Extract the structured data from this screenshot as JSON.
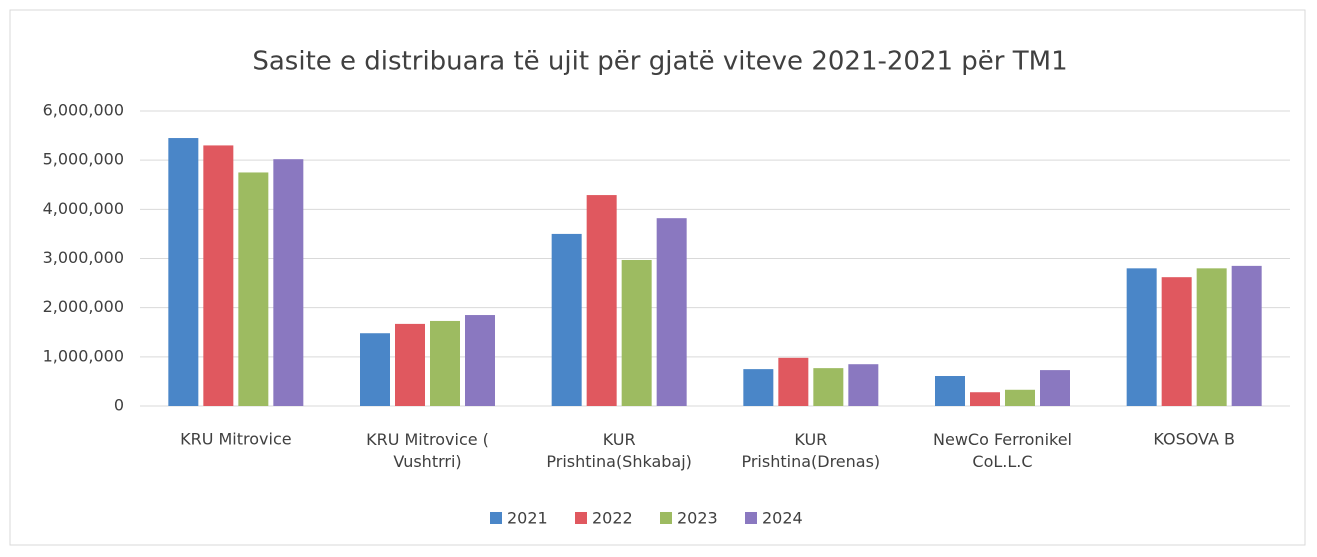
{
  "chart_data": {
    "type": "bar",
    "title": "Sasite e distribuara të ujit për gjatë viteve 2021-2021 për TM1",
    "categories": [
      "KRU Mitrovice",
      "KRU Mitrovice (\nVushtrri)",
      "KUR\nPrishtina(Shkabaj)",
      "KUR\nPrishtina(Drenas)",
      "NewCo Ferronikel\nCoL.L.C",
      "KOSOVA B"
    ],
    "series": [
      {
        "name": "2021",
        "color": "#4a86c8",
        "values": [
          5450000,
          1480000,
          3500000,
          750000,
          610000,
          2800000
        ]
      },
      {
        "name": "2022",
        "color": "#e0585f",
        "values": [
          5300000,
          1670000,
          4290000,
          980000,
          280000,
          2620000
        ]
      },
      {
        "name": "2023",
        "color": "#9dbb61",
        "values": [
          4750000,
          1730000,
          2970000,
          770000,
          330000,
          2800000
        ]
      },
      {
        "name": "2024",
        "color": "#8a78c0",
        "values": [
          5020000,
          1850000,
          3820000,
          850000,
          730000,
          2850000
        ]
      }
    ],
    "ylim": [
      0,
      6000000
    ],
    "yticks": [
      0,
      {
        "value": 1000000,
        "label": "1,000,000"
      },
      {
        "value": 2000000,
        "label": "2,000,000"
      },
      {
        "value": 3000000,
        "label": "3,000,000"
      },
      {
        "value": 4000000,
        "label": "4,000,000"
      },
      {
        "value": 5000000,
        "label": "5,000,000"
      },
      {
        "value": 6000000,
        "label": "6,000,000"
      }
    ],
    "grid": true,
    "legend": "bottom"
  }
}
